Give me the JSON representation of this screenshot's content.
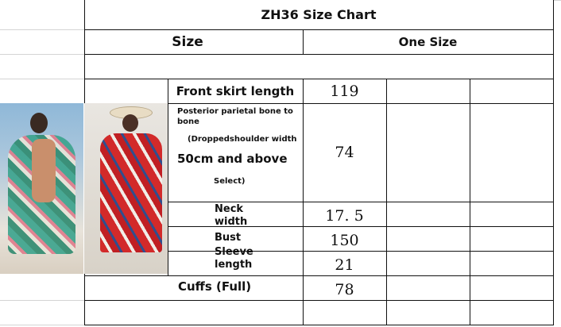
{
  "title": "ZH36 Size Chart",
  "size_header": {
    "label": "Size",
    "value": "One Size"
  },
  "rows": [
    {
      "label": "Front skirt length",
      "value": "119"
    },
    {
      "label_lines": [
        "Posterior parietal bone to bone",
        "(Droppedshoulder width",
        "50cm and above",
        "Select)"
      ],
      "value": "74"
    },
    {
      "label": "Neck width",
      "value": "17. 5"
    },
    {
      "label": "Bust",
      "value": "150"
    },
    {
      "label": "Sleeve length",
      "value": "21"
    },
    {
      "label": "Cuffs (Full)",
      "value": "78"
    }
  ],
  "images": {
    "left": "model in green floral kimono",
    "right": "model in red floral kimono"
  }
}
